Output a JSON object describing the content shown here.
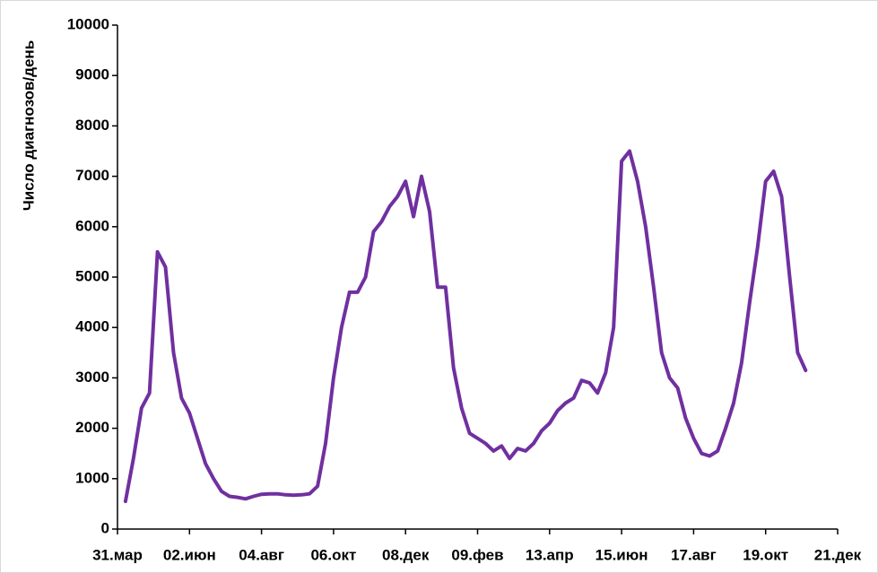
{
  "chart_data": {
    "type": "line",
    "y_label": "Число диагнозов/день",
    "categories": [
      "31.мар",
      null,
      null,
      null,
      null,
      null,
      null,
      null,
      null,
      "02.июн",
      null,
      null,
      null,
      null,
      null,
      null,
      null,
      null,
      "04.авг",
      null,
      null,
      null,
      null,
      null,
      null,
      null,
      null,
      "06.окт",
      null,
      null,
      null,
      null,
      null,
      null,
      null,
      null,
      "08.дек",
      null,
      null,
      null,
      null,
      null,
      null,
      null,
      null,
      "09.фев",
      null,
      null,
      null,
      null,
      null,
      null,
      null,
      null,
      "13.апр",
      null,
      null,
      null,
      null,
      null,
      null,
      null,
      null,
      "15.июн",
      null,
      null,
      null,
      null,
      null,
      null,
      null,
      null,
      "17.авг",
      null,
      null,
      null,
      null,
      null,
      null,
      null,
      null,
      "19.окт",
      null,
      null,
      null,
      null,
      null,
      null,
      null,
      null,
      "21.дек"
    ],
    "series": [
      {
        "name": "Число диагнозов/день",
        "color": "#7030a0",
        "values": [
          null,
          550,
          1400,
          2400,
          2700,
          5500,
          5200,
          3500,
          2600,
          2300,
          1800,
          1300,
          1000,
          750,
          650,
          630,
          600,
          650,
          690,
          700,
          700,
          680,
          670,
          680,
          700,
          850,
          1700,
          3000,
          4000,
          4700,
          4700,
          5000,
          5900,
          6100,
          6400,
          6600,
          6900,
          6200,
          7000,
          6300,
          4800,
          4800,
          3200,
          2400,
          1900,
          1800,
          1700,
          1550,
          1650,
          1400,
          1600,
          1550,
          1700,
          1950,
          2100,
          2350,
          2500,
          2600,
          2950,
          2900,
          2700,
          3100,
          4000,
          7300,
          7500,
          6900,
          6000,
          4800,
          3500,
          3000,
          2800,
          2200,
          1800,
          1500,
          1450,
          1550,
          2000,
          2500,
          3300,
          4500,
          5600,
          6900,
          7100,
          6600,
          5000,
          3500,
          3150,
          null,
          null,
          null,
          null
        ]
      }
    ],
    "ylim": [
      0,
      10000
    ],
    "yticks": [
      0,
      1000,
      2000,
      3000,
      4000,
      5000,
      6000,
      7000,
      8000,
      9000,
      10000
    ],
    "grid": false
  }
}
